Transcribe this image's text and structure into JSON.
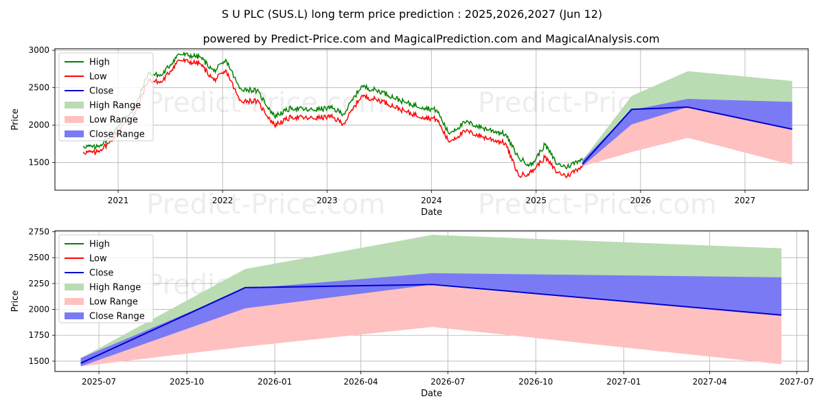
{
  "page": {
    "title": "S U PLC (SUS.L) long term price prediction : 2025,2026,2027 (Jun 12)",
    "subtitle": "powered by Predict-Price.com and MagicalPrediction.com and MagicalAnalysis.com",
    "watermark": "Predict-Price.com"
  },
  "colors": {
    "high": "#008000",
    "low": "#ff0000",
    "close": "#0000cd",
    "high_range": "#b9dcb3",
    "low_range": "#ffc0c0",
    "close_range": "#7a7af5",
    "grid": "#b0b0b0"
  },
  "chart_data": [
    {
      "type": "line",
      "xlabel": "Date",
      "ylabel": "Price",
      "xlim": [
        "2020-05-25",
        "2027-08-10"
      ],
      "ylim": [
        1130,
        3020
      ],
      "x_ticks": [
        "2021",
        "2022",
        "2023",
        "2024",
        "2025",
        "2026",
        "2027"
      ],
      "x_tick_dates": [
        "2021-01-01",
        "2022-01-01",
        "2023-01-01",
        "2024-01-01",
        "2025-01-01",
        "2026-01-01",
        "2027-01-01"
      ],
      "y_ticks": [
        1500,
        2000,
        2500,
        3000
      ],
      "grid": true,
      "legend": {
        "position": "top-left",
        "entries": [
          "High",
          "Low",
          "Close",
          "High Range",
          "Low Range",
          "Close Range"
        ]
      },
      "history": {
        "dates": [
          "2020-09-01",
          "2020-10-15",
          "2020-12-01",
          "2021-01-15",
          "2021-03-01",
          "2021-04-15",
          "2021-06-01",
          "2021-08-01",
          "2021-10-15",
          "2021-12-01",
          "2022-01-15",
          "2022-03-01",
          "2022-05-01",
          "2022-07-01",
          "2022-09-01",
          "2022-11-01",
          "2023-01-15",
          "2023-03-01",
          "2023-05-01",
          "2023-07-15",
          "2023-10-01",
          "2023-12-01",
          "2024-01-20",
          "2024-03-01",
          "2024-05-01",
          "2024-07-01",
          "2024-09-15",
          "2024-11-01",
          "2024-12-15",
          "2025-02-01",
          "2025-03-15",
          "2025-04-20",
          "2025-06-12"
        ],
        "high": [
          1720,
          1700,
          1820,
          2060,
          2230,
          2690,
          2660,
          2950,
          2910,
          2720,
          2860,
          2490,
          2460,
          2120,
          2230,
          2200,
          2230,
          2150,
          2520,
          2440,
          2300,
          2240,
          2200,
          1890,
          2040,
          1960,
          1880,
          1560,
          1460,
          1740,
          1480,
          1440,
          1560
        ],
        "low": [
          1640,
          1630,
          1760,
          1990,
          2150,
          2600,
          2570,
          2870,
          2820,
          2600,
          2720,
          2330,
          2320,
          2000,
          2110,
          2090,
          2110,
          2020,
          2390,
          2320,
          2180,
          2110,
          2080,
          1780,
          1920,
          1840,
          1760,
          1320,
          1370,
          1570,
          1370,
          1320,
          1460
        ],
        "close": [
          1680,
          1665,
          1790,
          2025,
          2190,
          2650,
          2615,
          2910,
          2865,
          2660,
          2790,
          2410,
          2390,
          2060,
          2170,
          2145,
          2170,
          2085,
          2455,
          2380,
          2240,
          2175,
          2140,
          1835,
          1980,
          1900,
          1820,
          1440,
          1415,
          1655,
          1425,
          1380,
          1510
        ]
      },
      "forecast": {
        "dates": [
          "2025-06-12",
          "2025-12-01",
          "2026-06-15",
          "2027-06-15"
        ],
        "close": [
          1480,
          2210,
          2240,
          1945
        ],
        "high_range": {
          "upper": [
            1530,
            2390,
            2720,
            2590
          ],
          "lower": [
            1460,
            2040,
            2240,
            1950
          ]
        },
        "low_range": {
          "upper": [
            1480,
            2200,
            2230,
            1940
          ],
          "lower": [
            1450,
            1640,
            1830,
            1470
          ]
        },
        "close_range": {
          "upper": [
            1530,
            2200,
            2350,
            2310
          ],
          "lower": [
            1450,
            2010,
            2240,
            1950
          ]
        }
      }
    },
    {
      "type": "line",
      "xlabel": "Date",
      "ylabel": "Price",
      "xlim": [
        "2025-05-16",
        "2027-07-13"
      ],
      "ylim": [
        1400,
        2760
      ],
      "x_ticks": [
        "2025-07",
        "2025-10",
        "2026-01",
        "2026-04",
        "2026-07",
        "2026-10",
        "2027-01",
        "2027-04",
        "2027-07"
      ],
      "x_tick_dates": [
        "2025-07-01",
        "2025-10-01",
        "2026-01-01",
        "2026-04-01",
        "2026-07-01",
        "2026-10-01",
        "2027-01-01",
        "2027-04-01",
        "2027-07-01"
      ],
      "y_ticks": [
        1500,
        1750,
        2000,
        2250,
        2500,
        2750
      ],
      "grid": true,
      "legend": {
        "position": "top-left",
        "entries": [
          "High",
          "Low",
          "Close",
          "High Range",
          "Low Range",
          "Close Range"
        ]
      },
      "forecast": {
        "dates": [
          "2025-06-12",
          "2025-12-01",
          "2026-06-15",
          "2027-06-15"
        ],
        "close": [
          1480,
          2210,
          2240,
          1945
        ],
        "high_range": {
          "upper": [
            1530,
            2390,
            2720,
            2590
          ],
          "lower": [
            1460,
            2040,
            2240,
            1950
          ]
        },
        "low_range": {
          "upper": [
            1480,
            2200,
            2230,
            1940
          ],
          "lower": [
            1450,
            1640,
            1830,
            1470
          ]
        },
        "close_range": {
          "upper": [
            1530,
            2200,
            2350,
            2310
          ],
          "lower": [
            1450,
            2010,
            2240,
            1950
          ]
        }
      }
    }
  ]
}
